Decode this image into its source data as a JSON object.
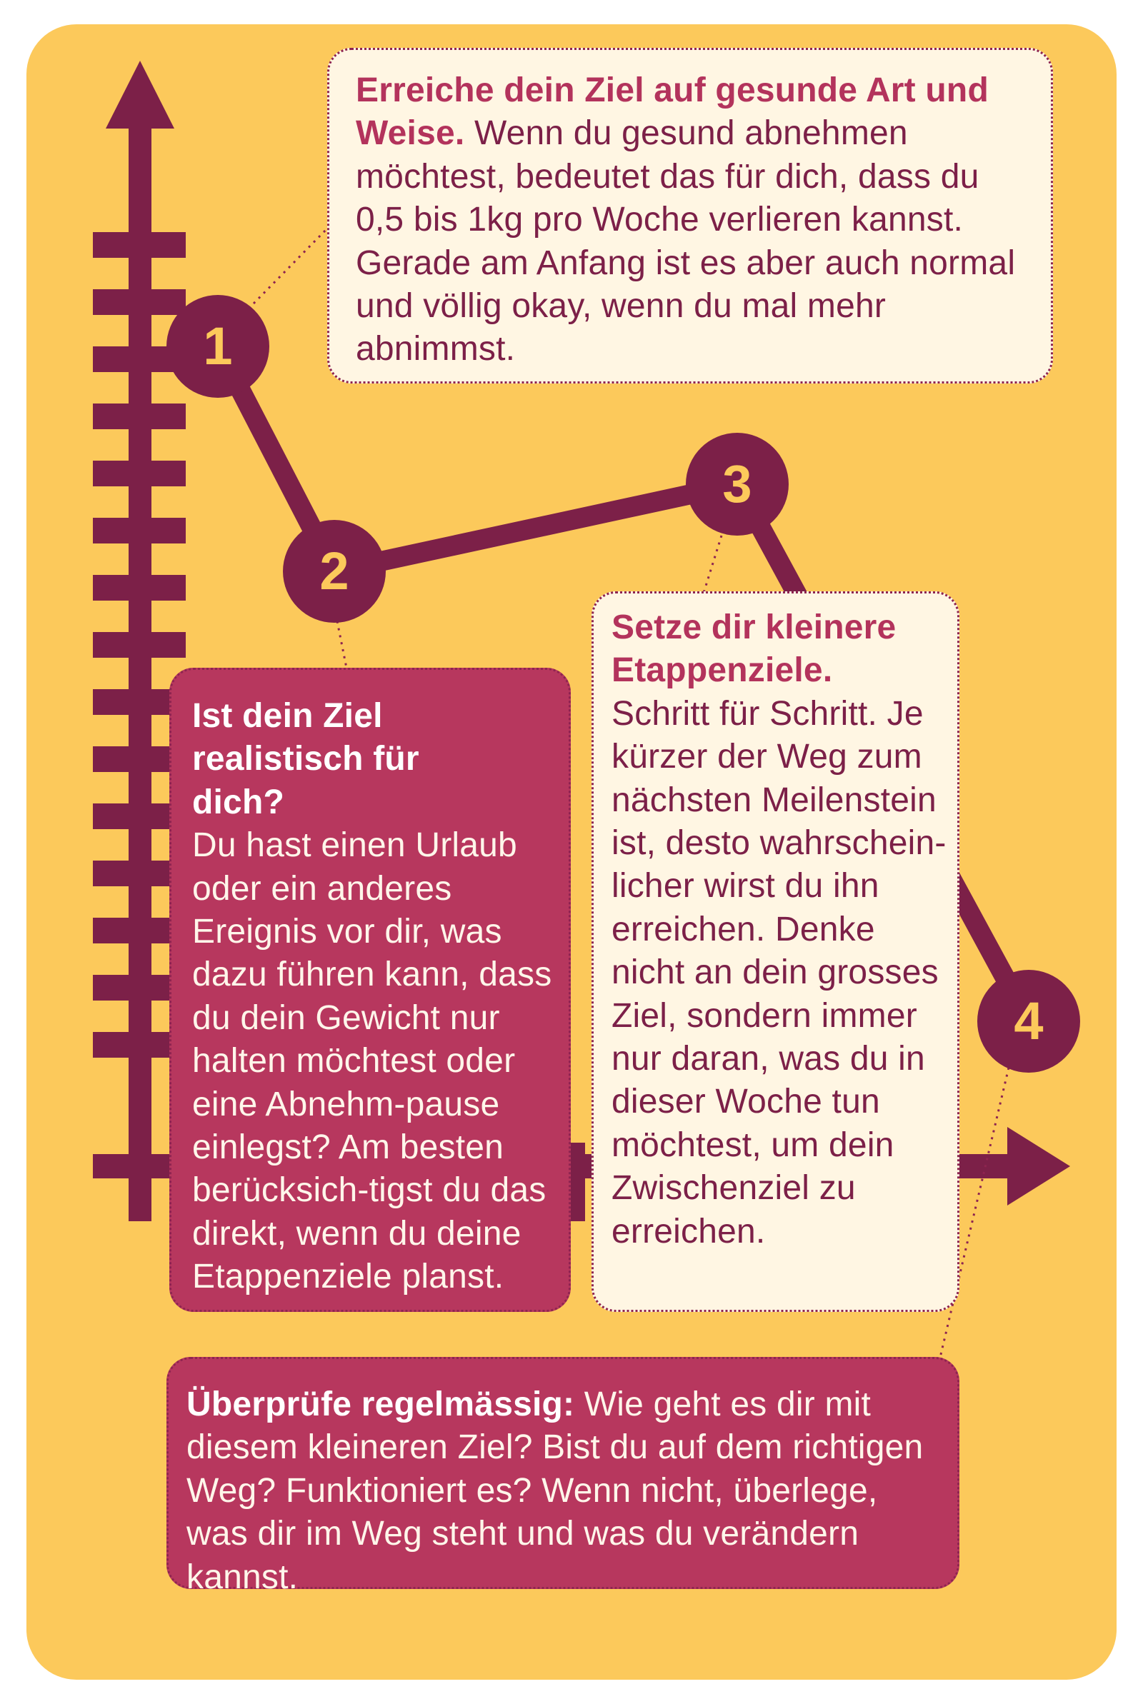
{
  "steps": [
    {
      "number": "1",
      "heading": "Erreiche dein Ziel auf gesunde Art und Weise.",
      "body": " Wenn du gesund abnehmen möchtest, bedeutet das für dich, dass du 0,5 bis 1kg pro Woche verlieren kannst. Gerade am Anfang ist es aber auch normal und völlig okay, wenn du mal mehr abnimmst."
    },
    {
      "number": "2",
      "heading": "Ist dein Ziel realistisch für dich?",
      "body": "Du hast einen Urlaub oder ein anderes Ereignis vor dir, was dazu führen kann, dass du dein Gewicht nur halten möchtest oder eine Abnehm-pause einlegst? Am besten berücksich-tigst du das direkt, wenn du deine Etappenziele planst."
    },
    {
      "number": "3",
      "heading": "Setze dir kleinere Etappenziele.",
      "body": "Schritt für Schritt. Je kürzer der Weg zum nächsten Meilenstein ist, desto wahrschein-licher wirst du ihn erreichen. Denke nicht an dein grosses Ziel, sondern immer nur daran, was du in dieser Woche tun möchtest, um dein Zwischenziel zu erreichen."
    },
    {
      "number": "4",
      "heading": "Überprüfe regelmässig:",
      "body": " Wie geht es dir mit diesem kleineren Ziel? Bist du auf dem richtigen Weg? Funktioniert es? Wenn nicht, überlege, was dir im Weg steht und was du verändern kannst."
    }
  ],
  "colors": {
    "background": "#fcc95b",
    "dark": "#7c2048",
    "box_dark": "#b7375e",
    "box_light": "#fff6e3",
    "number_text": "#fcc95b"
  }
}
